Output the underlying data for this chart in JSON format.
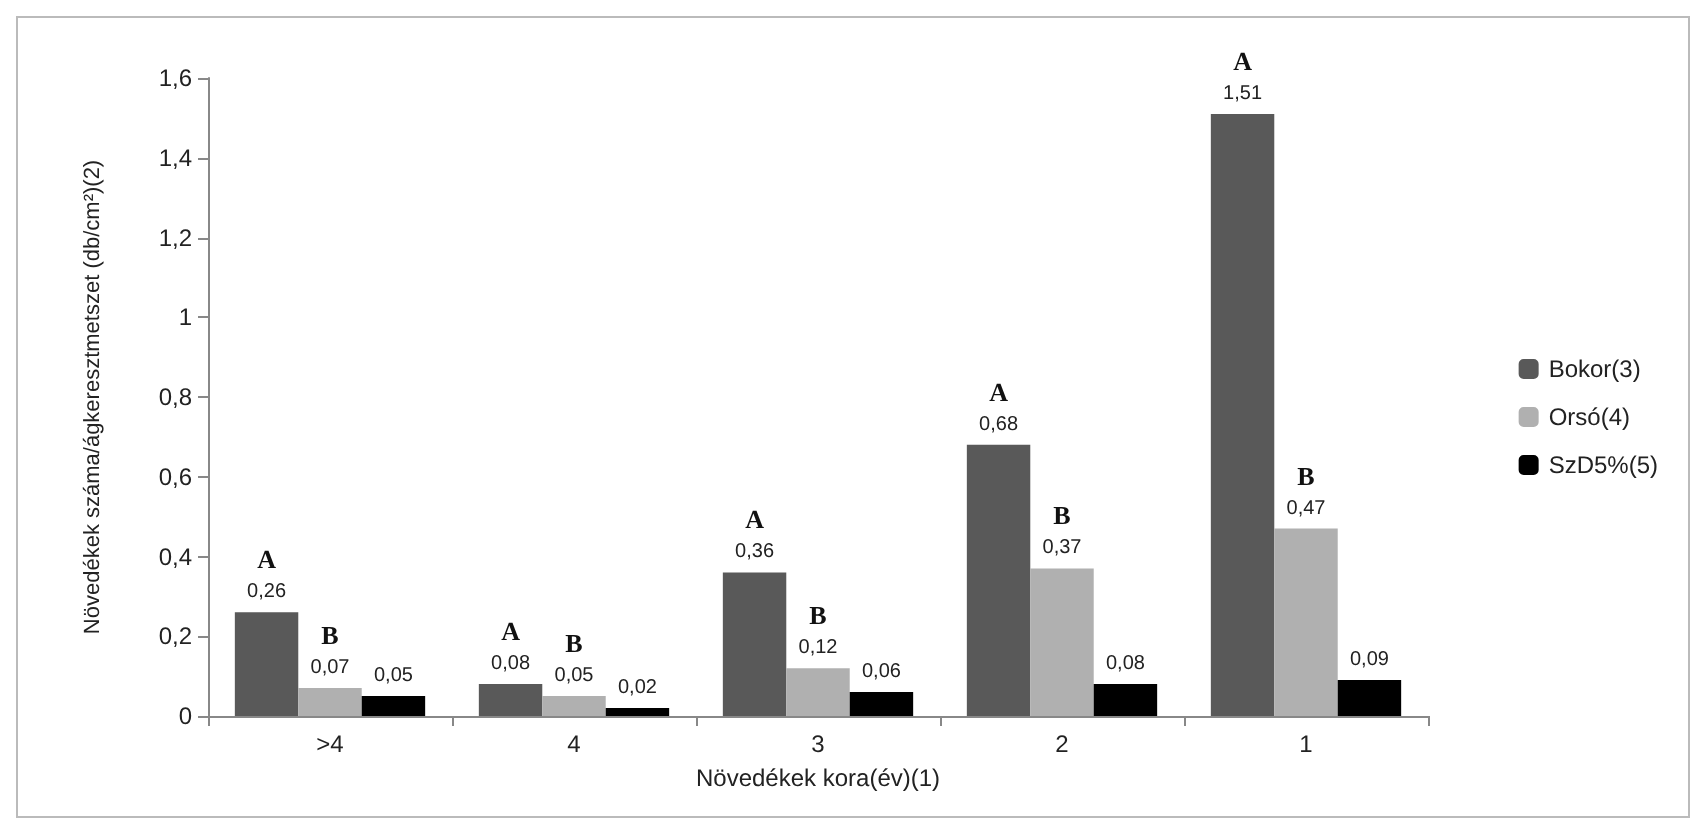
{
  "chart_data": {
    "type": "bar",
    "xlabel": "Növedékek kora(év)(1)",
    "ylabel": "Növedékek száma/ágkeresztmetszet (db/cm²)(2)",
    "categories": [
      ">4",
      "4",
      "3",
      "2",
      "1"
    ],
    "series": [
      {
        "name": "Bokor(3)",
        "color": "#595959",
        "values": [
          0.26,
          0.08,
          0.36,
          0.68,
          1.51
        ],
        "value_labels": [
          "0,26",
          "0,08",
          "0,36",
          "0,68",
          "1,51"
        ]
      },
      {
        "name": "Orsó(4)",
        "color": "#b0b0b0",
        "values": [
          0.07,
          0.05,
          0.12,
          0.37,
          0.47
        ],
        "value_labels": [
          "0,07",
          "0,05",
          "0,12",
          "0,37",
          "0,47"
        ]
      },
      {
        "name": "SzD5%(5)",
        "color": "#000000",
        "values": [
          0.05,
          0.02,
          0.06,
          0.08,
          0.09
        ],
        "value_labels": [
          "0,05",
          "0,02",
          "0,06",
          "0,08",
          "0,09"
        ]
      }
    ],
    "ylim": [
      0,
      1.6
    ],
    "yticks": [
      0,
      {
        "value": 0.2,
        "label": "0,2"
      },
      {
        "value": 0.4,
        "label": "0,4"
      },
      {
        "value": 0.6,
        "label": "0,6"
      },
      {
        "value": 0.8,
        "label": "0,8"
      },
      1,
      {
        "value": 1.2,
        "label": "1,2"
      },
      {
        "value": 1.4,
        "label": "1,4"
      },
      {
        "value": 1.6,
        "label": "1,6"
      }
    ],
    "grid": false,
    "legend": "right",
    "annotations": [
      "A",
      "B",
      "A",
      "B",
      "A",
      "B",
      "A",
      "B",
      "A",
      "B"
    ]
  }
}
